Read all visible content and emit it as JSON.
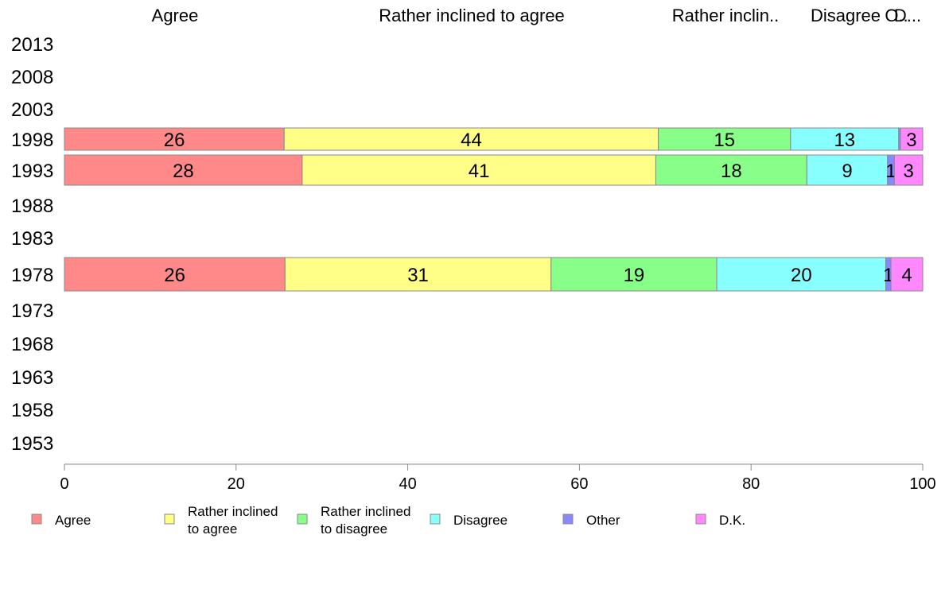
{
  "chart_data": {
    "type": "bar",
    "orientation": "horizontal",
    "stacked": true,
    "column_headers": [
      "Agree",
      "Rather inclined to agree",
      "Rather inclin..",
      "Disagree",
      "O..",
      "D..."
    ],
    "categories": [
      "2013",
      "2008",
      "2003",
      "1998",
      "1993",
      "1988",
      "1983",
      "1978",
      "1973",
      "1968",
      "1963",
      "1958",
      "1953"
    ],
    "series": [
      {
        "name": "Agree",
        "legend_lines": [
          "Agree"
        ],
        "color": "#ff8888",
        "values": [
          null,
          null,
          null,
          25.6,
          27.7,
          null,
          null,
          25.7,
          null,
          null,
          null,
          null,
          null
        ],
        "labels": [
          "",
          "",
          "",
          "26",
          "28",
          "",
          "",
          "26",
          "",
          "",
          "",
          "",
          ""
        ]
      },
      {
        "name": "Rather inclined to agree",
        "legend_lines": [
          "Rather inclined",
          "to agree"
        ],
        "color": "#ffff88",
        "values": [
          null,
          null,
          null,
          43.6,
          41.2,
          null,
          null,
          31.0,
          null,
          null,
          null,
          null,
          null
        ],
        "labels": [
          "",
          "",
          "",
          "44",
          "41",
          "",
          "",
          "31",
          "",
          "",
          "",
          "",
          ""
        ]
      },
      {
        "name": "Rather inclined to disagree",
        "legend_lines": [
          "Rather inclined",
          "to disagree"
        ],
        "color": "#88ff88",
        "values": [
          null,
          null,
          null,
          15.4,
          17.6,
          null,
          null,
          19.3,
          null,
          null,
          null,
          null,
          null
        ],
        "labels": [
          "",
          "",
          "",
          "15",
          "18",
          "",
          "",
          "19",
          "",
          "",
          "",
          "",
          ""
        ]
      },
      {
        "name": "Disagree",
        "legend_lines": [
          "Disagree"
        ],
        "color": "#88ffff",
        "values": [
          null,
          null,
          null,
          12.6,
          9.4,
          null,
          null,
          19.7,
          null,
          null,
          null,
          null,
          null
        ],
        "labels": [
          "",
          "",
          "",
          "13",
          "9",
          "",
          "",
          "20",
          "",
          "",
          "",
          "",
          ""
        ]
      },
      {
        "name": "Other",
        "legend_lines": [
          "Other"
        ],
        "color": "#8888ff",
        "values": [
          null,
          null,
          null,
          0.2,
          0.8,
          null,
          null,
          0.6,
          null,
          null,
          null,
          null,
          null
        ],
        "labels": [
          "",
          "",
          "",
          "",
          "1",
          "",
          "",
          "1",
          "",
          "",
          "",
          "",
          ""
        ]
      },
      {
        "name": "D.K.",
        "legend_lines": [
          "D.K."
        ],
        "color": "#ff88ff",
        "values": [
          null,
          null,
          null,
          2.6,
          3.3,
          null,
          null,
          3.7,
          null,
          null,
          null,
          null,
          null
        ],
        "labels": [
          "",
          "",
          "",
          "3",
          "3",
          "",
          "",
          "4",
          "",
          "",
          "",
          "",
          ""
        ]
      }
    ],
    "xlim": [
      0,
      100
    ],
    "xticks": [
      "0",
      "20",
      "40",
      "60",
      "80",
      "100"
    ],
    "grid": false,
    "legend_position": "bottom"
  }
}
